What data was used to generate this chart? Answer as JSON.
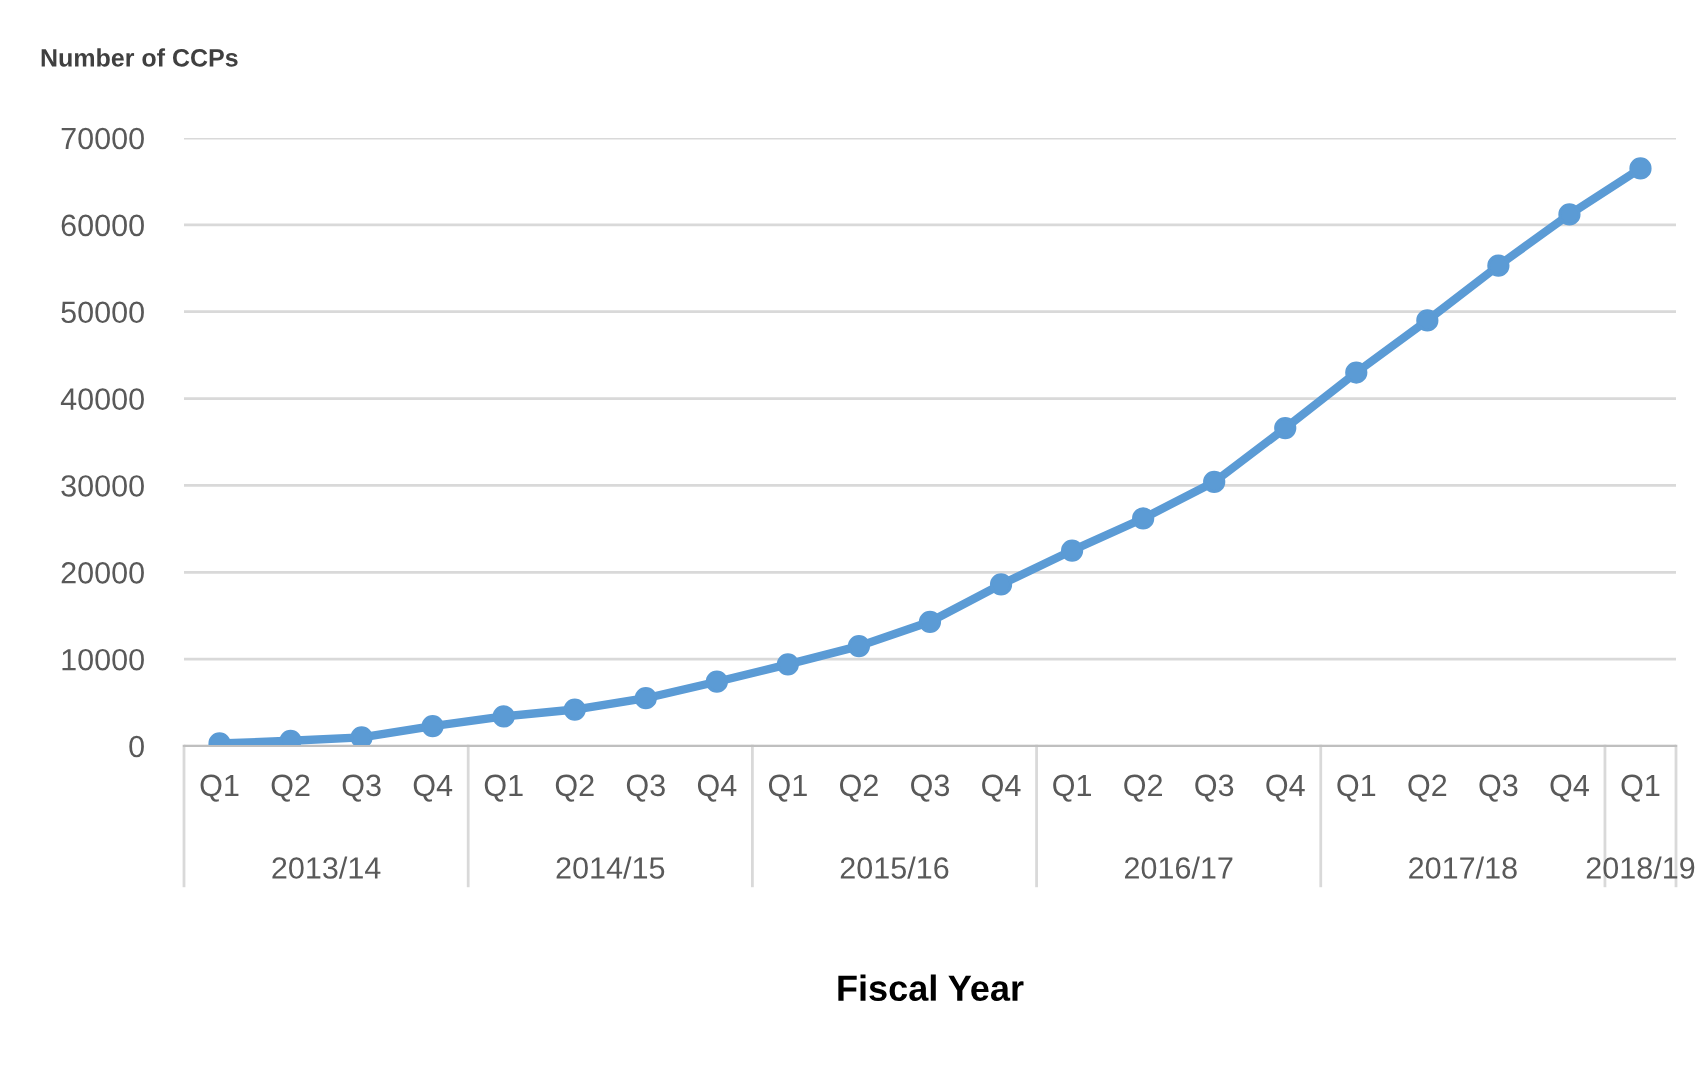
{
  "chart_data": {
    "type": "line",
    "ylabel": "Number of CCPs",
    "xlabel": "Fiscal Year",
    "categories": [
      "Q1",
      "Q2",
      "Q3",
      "Q4",
      "Q1",
      "Q2",
      "Q3",
      "Q4",
      "Q1",
      "Q2",
      "Q3",
      "Q4",
      "Q1",
      "Q2",
      "Q3",
      "Q4",
      "Q1",
      "Q2",
      "Q3",
      "Q4",
      "Q1"
    ],
    "series": [
      {
        "color": "#5b9bd5",
        "values": [
          300,
          600,
          1000,
          2300,
          3400,
          4200,
          5500,
          7400,
          9400,
          11500,
          14300,
          18600,
          22500,
          26200,
          30400,
          36600,
          43000,
          49000,
          55300,
          61200,
          66500
        ]
      }
    ],
    "annotations": [
      "2013/14",
      "2014/15",
      "2015/16",
      "2016/17",
      "2017/18",
      "2018/19"
    ],
    "ylim": [
      0,
      70000
    ],
    "yticks": [
      0,
      10000,
      20000,
      30000,
      40000,
      50000,
      60000,
      70000
    ],
    "grid": "y",
    "marker": "circle",
    "line_style": "solid"
  }
}
